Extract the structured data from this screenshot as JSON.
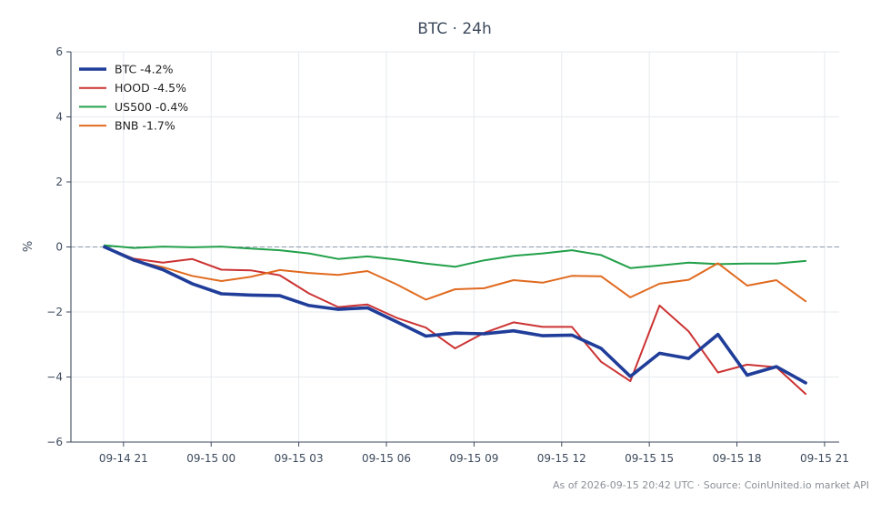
{
  "chart_data": {
    "type": "line",
    "title": "BTC · 24h",
    "xlabel": "",
    "ylabel": "%",
    "ylim": [
      -6,
      6
    ],
    "yticks": [
      -6,
      -4,
      -2,
      0,
      2,
      4,
      6
    ],
    "xticks": [
      {
        "x": 0.65,
        "label": "09-14 21"
      },
      {
        "x": 3.65,
        "label": "09-15 00"
      },
      {
        "x": 6.65,
        "label": "09-15 03"
      },
      {
        "x": 9.65,
        "label": "09-15 06"
      },
      {
        "x": 12.65,
        "label": "09-15 09"
      },
      {
        "x": 15.65,
        "label": "09-15 12"
      },
      {
        "x": 18.65,
        "label": "09-15 15"
      },
      {
        "x": 21.65,
        "label": "09-15 18"
      },
      {
        "x": 24.65,
        "label": "09-15 21"
      }
    ],
    "xlim": [
      -1.15,
      25.15
    ],
    "grid": true,
    "zero_line": true,
    "legend_position": "top-left",
    "x": [
      0,
      1,
      2,
      3,
      4,
      5,
      6,
      7,
      8,
      9,
      10,
      11,
      12,
      13,
      14,
      15,
      16,
      17,
      18,
      19,
      20,
      21,
      22,
      23,
      24
    ],
    "series": [
      {
        "name": "BTC -4.2%",
        "color": "#1f3d99",
        "width": 3.6,
        "values": [
          0.0,
          -0.4,
          -0.7,
          -1.13,
          -1.44,
          -1.48,
          -1.5,
          -1.8,
          -1.92,
          -1.87,
          -2.3,
          -2.74,
          -2.65,
          -2.67,
          -2.58,
          -2.73,
          -2.71,
          -3.12,
          -3.98,
          -3.27,
          -3.43,
          -2.69,
          -3.94,
          -3.68,
          -4.18
        ]
      },
      {
        "name": "HOOD -4.5%",
        "color": "#cc3333",
        "width": 2.0,
        "values": [
          0.0,
          -0.36,
          -0.48,
          -0.37,
          -0.7,
          -0.72,
          -0.87,
          -1.43,
          -1.85,
          -1.77,
          -2.18,
          -2.48,
          -3.12,
          -2.64,
          -2.32,
          -2.46,
          -2.46,
          -3.53,
          -4.13,
          -1.8,
          -2.6,
          -3.86,
          -3.62,
          -3.7,
          -4.52
        ]
      },
      {
        "name": "US500 -0.4%",
        "color": "#22a04a",
        "width": 2.0,
        "values": [
          0.05,
          -0.03,
          0.01,
          -0.01,
          0.01,
          -0.05,
          -0.1,
          -0.2,
          -0.37,
          -0.29,
          -0.39,
          -0.51,
          -0.61,
          -0.41,
          -0.27,
          -0.2,
          -0.1,
          -0.25,
          -0.65,
          -0.57,
          -0.48,
          -0.53,
          -0.51,
          -0.51,
          -0.43
        ]
      },
      {
        "name": "BNB -1.7%",
        "color": "#e06a1f",
        "width": 2.0,
        "values": [
          0.0,
          -0.43,
          -0.62,
          -0.89,
          -1.05,
          -0.92,
          -0.71,
          -0.8,
          -0.86,
          -0.74,
          -1.15,
          -1.62,
          -1.3,
          -1.27,
          -1.02,
          -1.1,
          -0.89,
          -0.9,
          -1.55,
          -1.13,
          -1.01,
          -0.5,
          -1.19,
          -1.02,
          -1.67
        ]
      }
    ],
    "footer": "As of 2026-09-15 20:42 UTC · Source: CoinUnited.io market API"
  }
}
